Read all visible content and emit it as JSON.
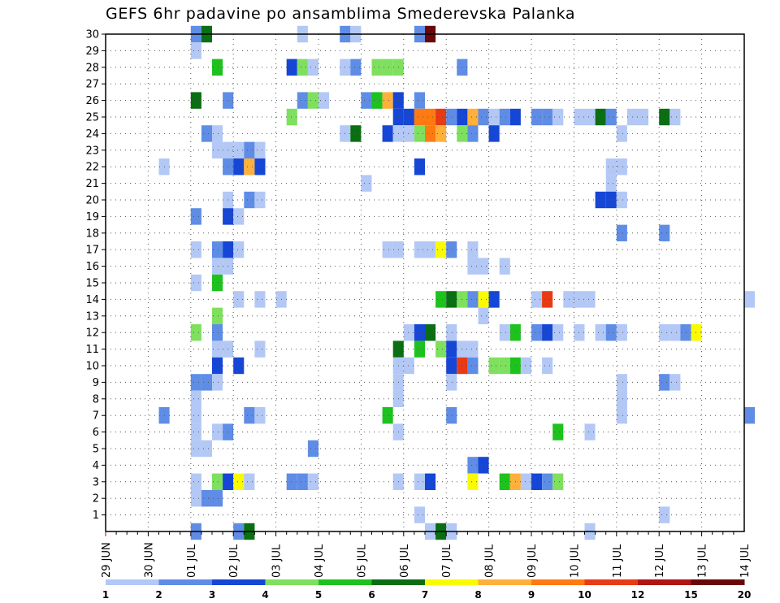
{
  "title": "GEFS 6hr padavine po ansamblima Smederevska Palanka",
  "chart_data": {
    "type": "heatmap",
    "title": "GEFS 6hr padavine po ansamblima Smederevska Palanka",
    "y_ticks": [
      "1",
      "2",
      "3",
      "4",
      "5",
      "6",
      "7",
      "8",
      "9",
      "10",
      "11",
      "12",
      "13",
      "14",
      "15",
      "16",
      "17",
      "18",
      "19",
      "20",
      "21",
      "22",
      "23",
      "24",
      "25",
      "26",
      "27",
      "28",
      "29",
      "30"
    ],
    "x_ticks": [
      "29 JUN",
      "30 JUN",
      "01 JUL",
      "02 JUL",
      "03 JUL",
      "04 JUL",
      "05 JUL",
      "06 JUL",
      "07 JUL",
      "08 JUL",
      "09 JUL",
      "10 JUL",
      "11 JUL",
      "12 JUL",
      "13 JUL",
      "14 JUL"
    ],
    "x_range_days": [
      0,
      15
    ],
    "y_range": [
      0,
      30
    ],
    "grid": true,
    "legend": {
      "position": "bottom",
      "labels": [
        "1",
        "2",
        "3",
        "4",
        "5",
        "6",
        "7",
        "8",
        "9",
        "10",
        "12",
        "15",
        "20"
      ],
      "colors": [
        "#b3c8f5",
        "#5f8de6",
        "#1646d6",
        "#7ee05e",
        "#1ec21e",
        "#0a6e12",
        "#fafa00",
        "#ffb03a",
        "#ff7a10",
        "#e83a14",
        "#b01414",
        "#6a0808"
      ]
    },
    "cells": [
      [
        30,
        2.0,
        1
      ],
      [
        30,
        2.25,
        5
      ],
      [
        30,
        4.5,
        0
      ],
      [
        30,
        5.5,
        1
      ],
      [
        30,
        5.75,
        0
      ],
      [
        30,
        7.25,
        1
      ],
      [
        30,
        7.5,
        11
      ],
      [
        29,
        2.0,
        0
      ],
      [
        28,
        2.5,
        4
      ],
      [
        28,
        4.25,
        2
      ],
      [
        28,
        4.5,
        3
      ],
      [
        28,
        4.75,
        0
      ],
      [
        28,
        5.5,
        0
      ],
      [
        28,
        5.75,
        1
      ],
      [
        28,
        6.25,
        3
      ],
      [
        28,
        6.5,
        3
      ],
      [
        28,
        6.75,
        3
      ],
      [
        28,
        8.25,
        1
      ],
      [
        26,
        2.0,
        5
      ],
      [
        26,
        2.75,
        1
      ],
      [
        26,
        4.5,
        1
      ],
      [
        26,
        4.75,
        3
      ],
      [
        26,
        5.0,
        0
      ],
      [
        26,
        6.0,
        1
      ],
      [
        26,
        6.25,
        4
      ],
      [
        26,
        6.5,
        7
      ],
      [
        26,
        6.75,
        2
      ],
      [
        26,
        7.25,
        1
      ],
      [
        25,
        4.25,
        3
      ],
      [
        25,
        6.75,
        2
      ],
      [
        25,
        7.0,
        2
      ],
      [
        25,
        7.25,
        8
      ],
      [
        25,
        7.5,
        8
      ],
      [
        25,
        7.75,
        9
      ],
      [
        25,
        8.0,
        1
      ],
      [
        25,
        8.25,
        2
      ],
      [
        25,
        8.5,
        7
      ],
      [
        25,
        8.75,
        1
      ],
      [
        25,
        9.0,
        0
      ],
      [
        25,
        9.25,
        1
      ],
      [
        25,
        9.5,
        2
      ],
      [
        25,
        10.0,
        1
      ],
      [
        25,
        10.25,
        1
      ],
      [
        25,
        10.5,
        0
      ],
      [
        25,
        11.0,
        0
      ],
      [
        25,
        11.25,
        0
      ],
      [
        25,
        11.5,
        5
      ],
      [
        25,
        11.75,
        1
      ],
      [
        25,
        12.25,
        0
      ],
      [
        25,
        12.5,
        0
      ],
      [
        25,
        13.0,
        5
      ],
      [
        25,
        13.25,
        0
      ],
      [
        24,
        2.25,
        1
      ],
      [
        24,
        2.5,
        0
      ],
      [
        24,
        5.5,
        0
      ],
      [
        24,
        5.75,
        5
      ],
      [
        24,
        6.5,
        2
      ],
      [
        24,
        6.75,
        0
      ],
      [
        24,
        7.0,
        0
      ],
      [
        24,
        7.25,
        3
      ],
      [
        24,
        7.5,
        8
      ],
      [
        24,
        7.75,
        7
      ],
      [
        24,
        8.25,
        3
      ],
      [
        24,
        8.5,
        1
      ],
      [
        24,
        9.0,
        2
      ],
      [
        24,
        12.0,
        0
      ],
      [
        23,
        2.5,
        0
      ],
      [
        23,
        2.75,
        0
      ],
      [
        23,
        3.0,
        0
      ],
      [
        23,
        3.25,
        1
      ],
      [
        23,
        3.5,
        0
      ],
      [
        22,
        1.25,
        0
      ],
      [
        22,
        2.75,
        1
      ],
      [
        22,
        3.0,
        2
      ],
      [
        22,
        3.25,
        7
      ],
      [
        22,
        3.5,
        2
      ],
      [
        22,
        7.25,
        2
      ],
      [
        22,
        11.75,
        0
      ],
      [
        22,
        12.0,
        0
      ],
      [
        21,
        6.0,
        0
      ],
      [
        21,
        11.75,
        0
      ],
      [
        20,
        2.75,
        0
      ],
      [
        20,
        3.25,
        1
      ],
      [
        20,
        3.5,
        0
      ],
      [
        20,
        11.5,
        2
      ],
      [
        20,
        11.75,
        2
      ],
      [
        20,
        12.0,
        0
      ],
      [
        19,
        2.0,
        1
      ],
      [
        19,
        2.75,
        2
      ],
      [
        19,
        3.0,
        0
      ],
      [
        18,
        12.0,
        1
      ],
      [
        18,
        13.0,
        1
      ],
      [
        17,
        2.0,
        0
      ],
      [
        17,
        2.5,
        1
      ],
      [
        17,
        2.75,
        2
      ],
      [
        17,
        3.0,
        0
      ],
      [
        17,
        6.5,
        0
      ],
      [
        17,
        6.75,
        0
      ],
      [
        17,
        7.25,
        0
      ],
      [
        17,
        7.5,
        0
      ],
      [
        17,
        7.75,
        6
      ],
      [
        17,
        8.0,
        1
      ],
      [
        17,
        8.5,
        0
      ],
      [
        16,
        2.5,
        0
      ],
      [
        16,
        2.75,
        0
      ],
      [
        16,
        8.5,
        0
      ],
      [
        16,
        8.75,
        0
      ],
      [
        16,
        9.25,
        0
      ],
      [
        15,
        2.0,
        0
      ],
      [
        15,
        2.5,
        4
      ],
      [
        14,
        3.0,
        0
      ],
      [
        14,
        3.5,
        0
      ],
      [
        14,
        4.0,
        0
      ],
      [
        14,
        7.75,
        4
      ],
      [
        14,
        8.0,
        5
      ],
      [
        14,
        8.25,
        3
      ],
      [
        14,
        8.5,
        1
      ],
      [
        14,
        8.75,
        6
      ],
      [
        14,
        9.0,
        2
      ],
      [
        14,
        10.0,
        0
      ],
      [
        14,
        10.25,
        9
      ],
      [
        14,
        10.75,
        0
      ],
      [
        14,
        11.0,
        0
      ],
      [
        14,
        11.25,
        0
      ],
      [
        14,
        15.0,
        0
      ],
      [
        13,
        2.5,
        3
      ],
      [
        13,
        8.75,
        0
      ],
      [
        12,
        2.0,
        3
      ],
      [
        12,
        2.5,
        1
      ],
      [
        12,
        7.0,
        0
      ],
      [
        12,
        7.25,
        2
      ],
      [
        12,
        7.5,
        5
      ],
      [
        12,
        8.0,
        0
      ],
      [
        12,
        9.25,
        0
      ],
      [
        12,
        9.5,
        4
      ],
      [
        12,
        10.0,
        1
      ],
      [
        12,
        10.25,
        2
      ],
      [
        12,
        10.5,
        0
      ],
      [
        12,
        11.0,
        0
      ],
      [
        12,
        11.5,
        0
      ],
      [
        12,
        11.75,
        1
      ],
      [
        12,
        12.0,
        0
      ],
      [
        12,
        13.0,
        0
      ],
      [
        12,
        13.25,
        0
      ],
      [
        12,
        13.5,
        1
      ],
      [
        12,
        13.75,
        6
      ],
      [
        11,
        2.5,
        0
      ],
      [
        11,
        2.75,
        0
      ],
      [
        11,
        3.5,
        0
      ],
      [
        11,
        6.75,
        5
      ],
      [
        11,
        7.25,
        4
      ],
      [
        11,
        7.75,
        3
      ],
      [
        11,
        8.0,
        2
      ],
      [
        11,
        8.25,
        0
      ],
      [
        11,
        8.5,
        0
      ],
      [
        10,
        2.5,
        2
      ],
      [
        10,
        3.0,
        2
      ],
      [
        10,
        6.75,
        0
      ],
      [
        10,
        7.0,
        0
      ],
      [
        10,
        8.0,
        2
      ],
      [
        10,
        8.25,
        9
      ],
      [
        10,
        8.5,
        1
      ],
      [
        10,
        9.0,
        3
      ],
      [
        10,
        9.25,
        3
      ],
      [
        10,
        9.5,
        4
      ],
      [
        10,
        9.75,
        0
      ],
      [
        10,
        10.25,
        0
      ],
      [
        9,
        2.0,
        1
      ],
      [
        9,
        2.25,
        1
      ],
      [
        9,
        2.5,
        0
      ],
      [
        9,
        6.75,
        0
      ],
      [
        9,
        8.0,
        0
      ],
      [
        9,
        12.0,
        0
      ],
      [
        9,
        13.0,
        1
      ],
      [
        9,
        13.25,
        0
      ],
      [
        8,
        2.0,
        0
      ],
      [
        8,
        6.75,
        0
      ],
      [
        8,
        12.0,
        0
      ],
      [
        7,
        1.25,
        1
      ],
      [
        7,
        2.0,
        0
      ],
      [
        7,
        3.25,
        1
      ],
      [
        7,
        3.5,
        0
      ],
      [
        7,
        6.5,
        4
      ],
      [
        7,
        8.0,
        1
      ],
      [
        7,
        12.0,
        0
      ],
      [
        7,
        15.0,
        1
      ],
      [
        6,
        2.0,
        0
      ],
      [
        6,
        2.5,
        0
      ],
      [
        6,
        2.75,
        1
      ],
      [
        6,
        6.75,
        0
      ],
      [
        6,
        10.5,
        4
      ],
      [
        6,
        11.25,
        0
      ],
      [
        5,
        2.0,
        0
      ],
      [
        5,
        2.25,
        0
      ],
      [
        5,
        4.75,
        1
      ],
      [
        4,
        8.5,
        1
      ],
      [
        4,
        8.75,
        2
      ],
      [
        3,
        2.0,
        0
      ],
      [
        3,
        2.5,
        3
      ],
      [
        3,
        2.75,
        2
      ],
      [
        3,
        3.0,
        6
      ],
      [
        3,
        3.25,
        0
      ],
      [
        3,
        4.25,
        1
      ],
      [
        3,
        4.5,
        1
      ],
      [
        3,
        4.75,
        0
      ],
      [
        3,
        6.75,
        0
      ],
      [
        3,
        7.25,
        0
      ],
      [
        3,
        7.5,
        2
      ],
      [
        3,
        8.5,
        6
      ],
      [
        3,
        9.25,
        4
      ],
      [
        3,
        9.5,
        7
      ],
      [
        3,
        9.75,
        0
      ],
      [
        3,
        10.0,
        2
      ],
      [
        3,
        10.25,
        1
      ],
      [
        3,
        10.5,
        3
      ],
      [
        2,
        2.0,
        0
      ],
      [
        2,
        2.25,
        1
      ],
      [
        2,
        2.5,
        1
      ],
      [
        1,
        7.25,
        0
      ],
      [
        1,
        13.0,
        0
      ],
      [
        0,
        2.0,
        1
      ],
      [
        0,
        3.0,
        1
      ],
      [
        0,
        3.25,
        5
      ],
      [
        0,
        7.5,
        0
      ],
      [
        0,
        7.75,
        5
      ],
      [
        0,
        8.0,
        0
      ],
      [
        0,
        11.25,
        0
      ]
    ]
  }
}
